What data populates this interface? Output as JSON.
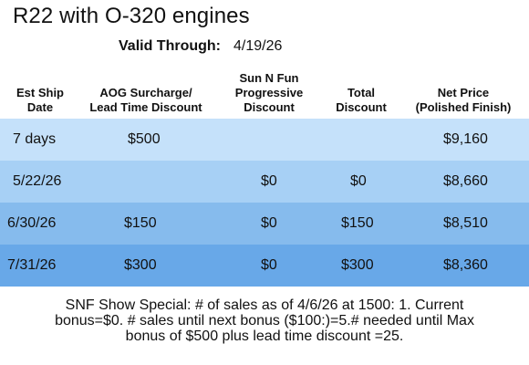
{
  "title": "R22 with O-320 engines",
  "valid": {
    "label": "Valid Through:",
    "date": "4/19/26"
  },
  "headers": {
    "ship": [
      "Est Ship",
      "Date"
    ],
    "aog": [
      "AOG Surcharge/",
      "Lead Time Discount"
    ],
    "snf": [
      "Sun N Fun",
      "Progressive",
      "Discount"
    ],
    "total": [
      "Total",
      "Discount"
    ],
    "net": [
      "Net Price",
      "(Polished Finish)"
    ]
  },
  "rows": [
    {
      "ship": "7 days",
      "aog": "$500",
      "snf": "",
      "total": "",
      "net": "$9,160",
      "color": "#c5e1fa"
    },
    {
      "ship": "5/22/26",
      "aog": "",
      "snf": "$0",
      "total": "$0",
      "net": "$8,660",
      "color": "#a7d0f5"
    },
    {
      "ship": "6/30/26",
      "aog": "$150",
      "snf": "$0",
      "total": "$150",
      "net": "$8,510",
      "color": "#86bbed"
    },
    {
      "ship": "7/31/26",
      "aog": "$300",
      "snf": "$0",
      "total": "$300",
      "net": "$8,360",
      "color": "#68a8e8"
    }
  ],
  "note": [
    "SNF Show Special: # of sales as of 4/6/26 at 1500: 1. Current",
    "bonus=$0. # sales until next bonus ($100:)=5.# needed until Max",
    "bonus of $500 plus lead time discount =25."
  ]
}
